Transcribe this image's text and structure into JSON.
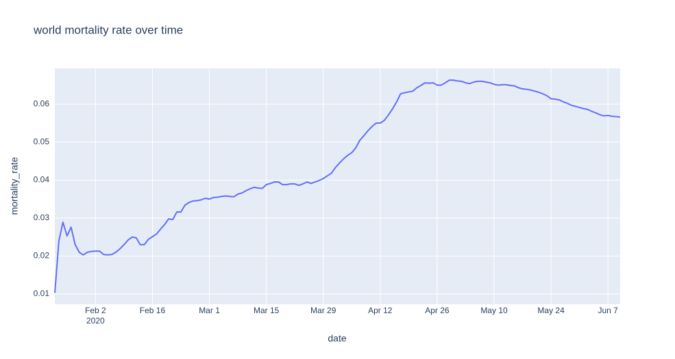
{
  "chart_data": {
    "type": "line",
    "title": "world mortality rate over time",
    "x_label": "date",
    "y_label": "mortality_rate",
    "x": [
      "2020-01-23",
      "2020-01-24",
      "2020-01-25",
      "2020-01-26",
      "2020-01-27",
      "2020-01-28",
      "2020-01-29",
      "2020-01-30",
      "2020-01-31",
      "2020-02-01",
      "2020-02-02",
      "2020-02-03",
      "2020-02-04",
      "2020-02-05",
      "2020-02-06",
      "2020-02-07",
      "2020-02-08",
      "2020-02-09",
      "2020-02-10",
      "2020-02-11",
      "2020-02-12",
      "2020-02-13",
      "2020-02-14",
      "2020-02-15",
      "2020-02-16",
      "2020-02-17",
      "2020-02-18",
      "2020-02-19",
      "2020-02-20",
      "2020-02-21",
      "2020-02-22",
      "2020-02-23",
      "2020-02-24",
      "2020-02-25",
      "2020-02-26",
      "2020-02-27",
      "2020-02-28",
      "2020-02-29",
      "2020-03-01",
      "2020-03-02",
      "2020-03-03",
      "2020-03-04",
      "2020-03-05",
      "2020-03-06",
      "2020-03-07",
      "2020-03-08",
      "2020-03-09",
      "2020-03-10",
      "2020-03-11",
      "2020-03-12",
      "2020-03-13",
      "2020-03-14",
      "2020-03-15",
      "2020-03-16",
      "2020-03-17",
      "2020-03-18",
      "2020-03-19",
      "2020-03-20",
      "2020-03-21",
      "2020-03-22",
      "2020-03-23",
      "2020-03-24",
      "2020-03-25",
      "2020-03-26",
      "2020-03-27",
      "2020-03-28",
      "2020-03-29",
      "2020-03-30",
      "2020-03-31",
      "2020-04-01",
      "2020-04-02",
      "2020-04-03",
      "2020-04-04",
      "2020-04-05",
      "2020-04-06",
      "2020-04-07",
      "2020-04-08",
      "2020-04-09",
      "2020-04-10",
      "2020-04-11",
      "2020-04-12",
      "2020-04-13",
      "2020-04-14",
      "2020-04-15",
      "2020-04-16",
      "2020-04-17",
      "2020-04-18",
      "2020-04-19",
      "2020-04-20",
      "2020-04-21",
      "2020-04-22",
      "2020-04-23",
      "2020-04-24",
      "2020-04-25",
      "2020-04-26",
      "2020-04-27",
      "2020-04-28",
      "2020-04-29",
      "2020-04-30",
      "2020-05-01",
      "2020-05-02",
      "2020-05-03",
      "2020-05-04",
      "2020-05-05",
      "2020-05-06",
      "2020-05-07",
      "2020-05-08",
      "2020-05-09",
      "2020-05-10",
      "2020-05-11",
      "2020-05-12",
      "2020-05-13",
      "2020-05-14",
      "2020-05-15",
      "2020-05-16",
      "2020-05-17",
      "2020-05-18",
      "2020-05-19",
      "2020-05-20",
      "2020-05-21",
      "2020-05-22",
      "2020-05-23",
      "2020-05-24",
      "2020-05-25",
      "2020-05-26",
      "2020-05-27",
      "2020-05-28",
      "2020-05-29",
      "2020-05-30",
      "2020-05-31",
      "2020-06-01",
      "2020-06-02",
      "2020-06-03",
      "2020-06-04",
      "2020-06-05",
      "2020-06-06",
      "2020-06-07",
      "2020-06-08",
      "2020-06-09",
      "2020-06-10"
    ],
    "series": [
      {
        "name": "mortality_rate",
        "color": "#636efa",
        "values": [
          0.0103,
          0.024,
          0.0289,
          0.0253,
          0.0276,
          0.023,
          0.021,
          0.0203,
          0.021,
          0.0212,
          0.0213,
          0.0213,
          0.0204,
          0.0203,
          0.0204,
          0.021,
          0.0219,
          0.023,
          0.0242,
          0.025,
          0.0248,
          0.023,
          0.023,
          0.0244,
          0.0251,
          0.0258,
          0.0271,
          0.0283,
          0.0298,
          0.0296,
          0.0316,
          0.0316,
          0.0334,
          0.0341,
          0.0345,
          0.0346,
          0.0348,
          0.0352,
          0.035,
          0.0354,
          0.0355,
          0.0357,
          0.0358,
          0.0357,
          0.0356,
          0.0363,
          0.0366,
          0.0372,
          0.0377,
          0.0381,
          0.0379,
          0.0378,
          0.0388,
          0.0391,
          0.0395,
          0.0395,
          0.0388,
          0.0388,
          0.039,
          0.039,
          0.0386,
          0.039,
          0.0395,
          0.0391,
          0.0395,
          0.0399,
          0.0404,
          0.0411,
          0.0418,
          0.0433,
          0.0445,
          0.0456,
          0.0465,
          0.0472,
          0.0485,
          0.0505,
          0.0517,
          0.053,
          0.0541,
          0.055,
          0.055,
          0.0557,
          0.0571,
          0.0587,
          0.0605,
          0.0627,
          0.063,
          0.0632,
          0.0634,
          0.0643,
          0.0649,
          0.0656,
          0.0655,
          0.0656,
          0.065,
          0.065,
          0.0656,
          0.0663,
          0.0663,
          0.0661,
          0.066,
          0.0656,
          0.0654,
          0.0658,
          0.066,
          0.066,
          0.0658,
          0.0656,
          0.0652,
          0.065,
          0.0651,
          0.0651,
          0.0649,
          0.0648,
          0.0643,
          0.064,
          0.0639,
          0.0637,
          0.0634,
          0.0631,
          0.0627,
          0.0622,
          0.0614,
          0.0613,
          0.0611,
          0.0606,
          0.0602,
          0.0597,
          0.0594,
          0.0591,
          0.0588,
          0.0586,
          0.0581,
          0.0577,
          0.0572,
          0.0569,
          0.057,
          0.0568,
          0.0567,
          0.0566
        ]
      }
    ],
    "xlim": [
      "2020-01-23",
      "2020-06-10"
    ],
    "xticks": [
      {
        "value": "2020-02-02",
        "label": "Feb 2"
      },
      {
        "value": "2020-02-16",
        "label": "Feb 16"
      },
      {
        "value": "2020-03-01",
        "label": "Mar 1"
      },
      {
        "value": "2020-03-15",
        "label": "Mar 15"
      },
      {
        "value": "2020-03-29",
        "label": "Mar 29"
      },
      {
        "value": "2020-04-12",
        "label": "Apr 12"
      },
      {
        "value": "2020-04-26",
        "label": "Apr 26"
      },
      {
        "value": "2020-05-10",
        "label": "May 10"
      },
      {
        "value": "2020-05-24",
        "label": "May 24"
      },
      {
        "value": "2020-06-07",
        "label": "Jun 7"
      }
    ],
    "xtick_year": "2020",
    "ylim": [
      0.0073,
      0.0694
    ],
    "yticks": [
      0.01,
      0.02,
      0.03,
      0.04,
      0.05,
      0.06
    ],
    "grid": true
  }
}
